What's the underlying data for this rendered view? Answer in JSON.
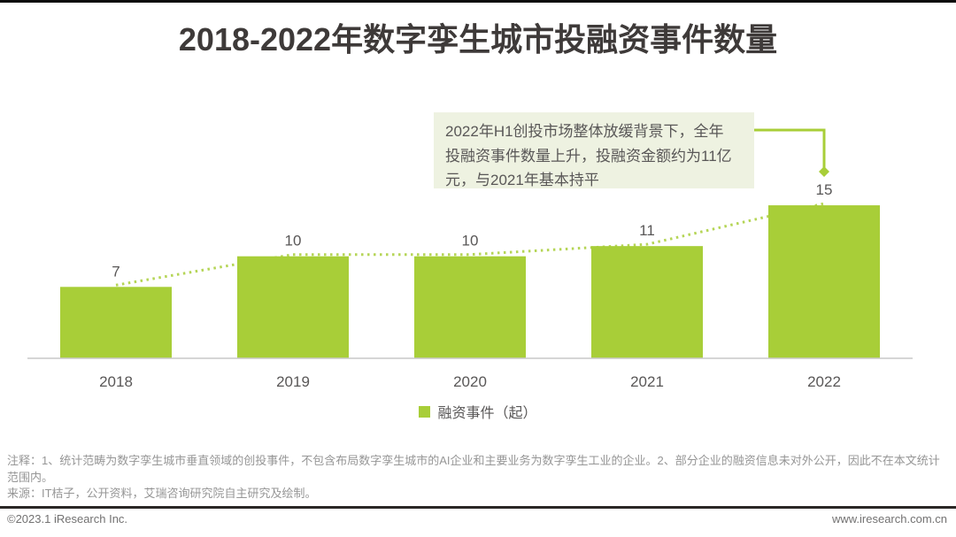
{
  "page": {
    "title": "2018-2022年数字孪生城市投融资事件数量"
  },
  "chart_data": {
    "type": "bar",
    "title": "2018-2022年数字孪生城市投融资事件数量",
    "categories": [
      "2018",
      "2019",
      "2020",
      "2021",
      "2022"
    ],
    "series": [
      {
        "name": "融资事件（起）",
        "values": [
          7,
          10,
          10,
          11,
          15
        ]
      }
    ],
    "xlabel": "",
    "ylabel": "",
    "ylim": [
      0,
      16
    ],
    "grid": false,
    "axis_line": "bottom-only",
    "legend_position": "bottom",
    "value_labels_shown": true,
    "trendline": {
      "style": "dotted",
      "through": "bar-tops"
    }
  },
  "annotation": {
    "lines": [
      "2022年H1创投市场整体放缓背景下，全年",
      "投融资事件数量上升，投融资金额约为11亿",
      "元，与2021年基本持平"
    ],
    "points_to_category": "2022"
  },
  "legend": {
    "label": "融资事件（起）"
  },
  "notes": {
    "note": "注释：1、统计范畴为数字孪生城市垂直领域的创投事件，不包含布局数字孪生城市的AI企业和主要业务为数字孪生工业的企业。2、部分企业的融资信息未对外公开，因此不在本文统计范围内。",
    "source": "来源：IT桔子，公开资料，艾瑞咨询研究院自主研究及绘制。"
  },
  "footer": {
    "copyright": "©2023.1 iResearch Inc.",
    "website": "www.iresearch.com.cn"
  },
  "colors": {
    "bar_green": "#A8CE38",
    "title_text": "#3E3A39",
    "label_text": "#595757",
    "note_text": "#969696",
    "footer_text": "#727171",
    "annotation_bg": "#EEF2E1",
    "axis_line": "#C9C9C9",
    "top_rule": "#0A0A0A",
    "footer_rule": "#2B2826"
  }
}
